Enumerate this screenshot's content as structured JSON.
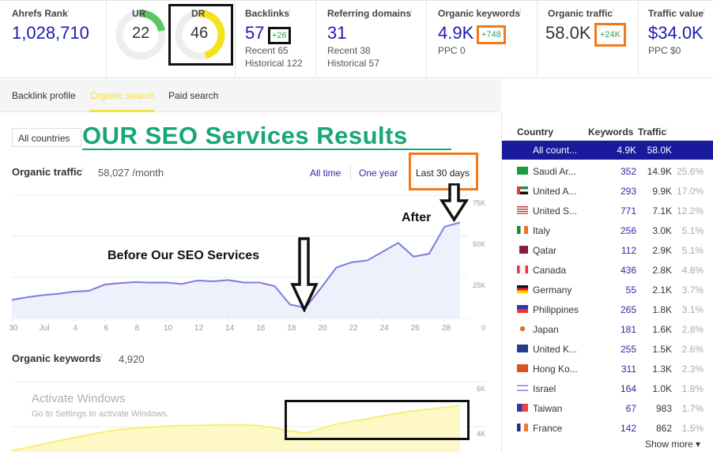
{
  "metrics": {
    "ahrefs_rank": {
      "label": "Ahrefs Rank",
      "value": "1,028,710"
    },
    "ur": {
      "label": "UR",
      "value": "22",
      "score": 22,
      "color": "#5cc85c"
    },
    "dr": {
      "label": "DR",
      "value": "46",
      "score": 46,
      "color": "#f5e31a"
    },
    "backlinks": {
      "label": "Backlinks",
      "value": "57",
      "delta": "+26",
      "recent": "Recent 65",
      "historical": "Historical 122"
    },
    "referring_domains": {
      "label": "Referring domains",
      "value": "31",
      "recent": "Recent 38",
      "historical": "Historical 57"
    },
    "organic_keywords": {
      "label": "Organic keywords",
      "value": "4.9K",
      "delta": "+748",
      "ppc": "PPC 0"
    },
    "organic_traffic": {
      "label": "Organic traffic",
      "value": "58.0K",
      "delta": "+24K"
    },
    "traffic_value": {
      "label": "Traffic value",
      "value": "$34.0K",
      "ppc": "PPC $0"
    }
  },
  "tabs": [
    {
      "label": "Backlink profile"
    },
    {
      "label": "Organic search",
      "active": true
    },
    {
      "label": "Paid search"
    }
  ],
  "country_select": {
    "value": "All countries"
  },
  "banner": {
    "title": "OUR SEO Services Results",
    "color": "#17a67a"
  },
  "traffic_section": {
    "title": "Organic traffic",
    "value": "58,027 /month",
    "ranges": [
      "All time",
      "One year",
      "Last 30 days"
    ],
    "selected_range": "Last 30 days"
  },
  "annotations": {
    "before": "Before Our  SEO Services",
    "after": "After"
  },
  "keywords_section": {
    "title": "Organic keywords",
    "value": "4,920"
  },
  "chart_data": [
    {
      "type": "area",
      "series": [
        {
          "values": [
            11300,
            12900,
            14200,
            15000,
            16300,
            16800,
            20600,
            21500,
            22100,
            21800,
            21900,
            21000,
            23100,
            22600,
            23400,
            21900,
            21900,
            19700,
            8500,
            6500,
            18500,
            31000,
            34200,
            35300,
            40600,
            46000,
            37600,
            39400,
            55800,
            58400
          ]
        }
      ],
      "xtick_labels": [
        "30",
        "Jul",
        "4",
        "6",
        "8",
        "10",
        "12",
        "14",
        "16",
        "18",
        "20",
        "22",
        "24",
        "26",
        "28"
      ],
      "ytick_labels": [
        "75K",
        "50K",
        "25K",
        "0"
      ],
      "ylim": [
        0,
        75000
      ],
      "grid": true,
      "color": "#7b7be0"
    },
    {
      "type": "area",
      "series": [
        {
          "values": [
            2940,
            3080,
            3220,
            3370,
            3510,
            3650,
            3770,
            3880,
            3930,
            3980,
            4030,
            4050,
            4060,
            4070,
            4080,
            4080,
            4050,
            3940,
            3820,
            3710,
            3920,
            4120,
            4240,
            4350,
            4480,
            4610,
            4700,
            4780,
            4860,
            4940
          ]
        }
      ],
      "ytick_labels": [
        "6K",
        "4K"
      ],
      "grid": true,
      "color": "#f8ee7a"
    }
  ],
  "countries": {
    "headers": [
      "Country",
      "Keywords",
      "Traffic"
    ],
    "all": {
      "name": "All count...",
      "keywords": "4.9K",
      "traffic": "58.0K"
    },
    "rows": [
      {
        "name": "Saudi Ar...",
        "keywords": "352",
        "traffic": "14.9K",
        "percent": "25.6%",
        "flag": "sa"
      },
      {
        "name": "United A...",
        "keywords": "293",
        "traffic": "9.9K",
        "percent": "17.0%",
        "flag": "ae"
      },
      {
        "name": "United S...",
        "keywords": "771",
        "traffic": "7.1K",
        "percent": "12.2%",
        "flag": "us"
      },
      {
        "name": "Italy",
        "keywords": "256",
        "traffic": "3.0K",
        "percent": "5.1%",
        "flag": "it"
      },
      {
        "name": "Qatar",
        "keywords": "112",
        "traffic": "2.9K",
        "percent": "5.1%",
        "flag": "qa"
      },
      {
        "name": "Canada",
        "keywords": "436",
        "traffic": "2.8K",
        "percent": "4.8%",
        "flag": "ca"
      },
      {
        "name": "Germany",
        "keywords": "55",
        "traffic": "2.1K",
        "percent": "3.7%",
        "flag": "de"
      },
      {
        "name": "Philippines",
        "keywords": "265",
        "traffic": "1.8K",
        "percent": "3.1%",
        "flag": "ph"
      },
      {
        "name": "Japan",
        "keywords": "181",
        "traffic": "1.6K",
        "percent": "2.8%",
        "flag": "jp"
      },
      {
        "name": "United K...",
        "keywords": "255",
        "traffic": "1.5K",
        "percent": "2.6%",
        "flag": "gb"
      },
      {
        "name": "Hong Ko...",
        "keywords": "311",
        "traffic": "1.3K",
        "percent": "2.3%",
        "flag": "hk"
      },
      {
        "name": "Israel",
        "keywords": "164",
        "traffic": "1.0K",
        "percent": "1.8%",
        "flag": "il"
      },
      {
        "name": "Taiwan",
        "keywords": "67",
        "traffic": "983",
        "percent": "1.7%",
        "flag": "tw"
      },
      {
        "name": "France",
        "keywords": "142",
        "traffic": "862",
        "percent": "1.5%",
        "flag": "fr"
      }
    ],
    "show_more": "Show more ▾"
  },
  "watermark": {
    "line1": "Activate Windows",
    "line2": "Go to Settings to activate Windows."
  }
}
